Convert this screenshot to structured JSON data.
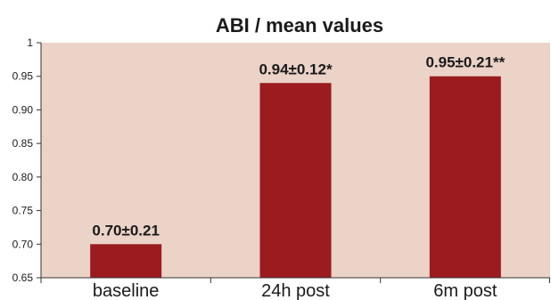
{
  "chart_data": {
    "type": "bar",
    "title": "ABI / mean values",
    "xlabel": "",
    "ylabel": "",
    "categories": [
      "baseline",
      "24h post",
      "6m post"
    ],
    "values": [
      0.7,
      0.94,
      0.95
    ],
    "data_labels": [
      "0.70±0.21",
      "0.94±0.12*",
      "0.95±0.21**"
    ],
    "ylim": [
      0.65,
      1
    ],
    "yticks": [
      0.65,
      0.7,
      0.75,
      0.8,
      0.85,
      0.9,
      0.95,
      1
    ],
    "ytick_labels": [
      "0.65",
      "0.70",
      "0.75",
      "0.80",
      "0.85",
      "0.90",
      "0.95",
      "1"
    ],
    "grid": false,
    "legend": "none",
    "colors": {
      "bar": "#9b1b1f",
      "plot_background": "#ebd3c8",
      "axis": "#333333",
      "text": "#1a1a1a"
    }
  }
}
